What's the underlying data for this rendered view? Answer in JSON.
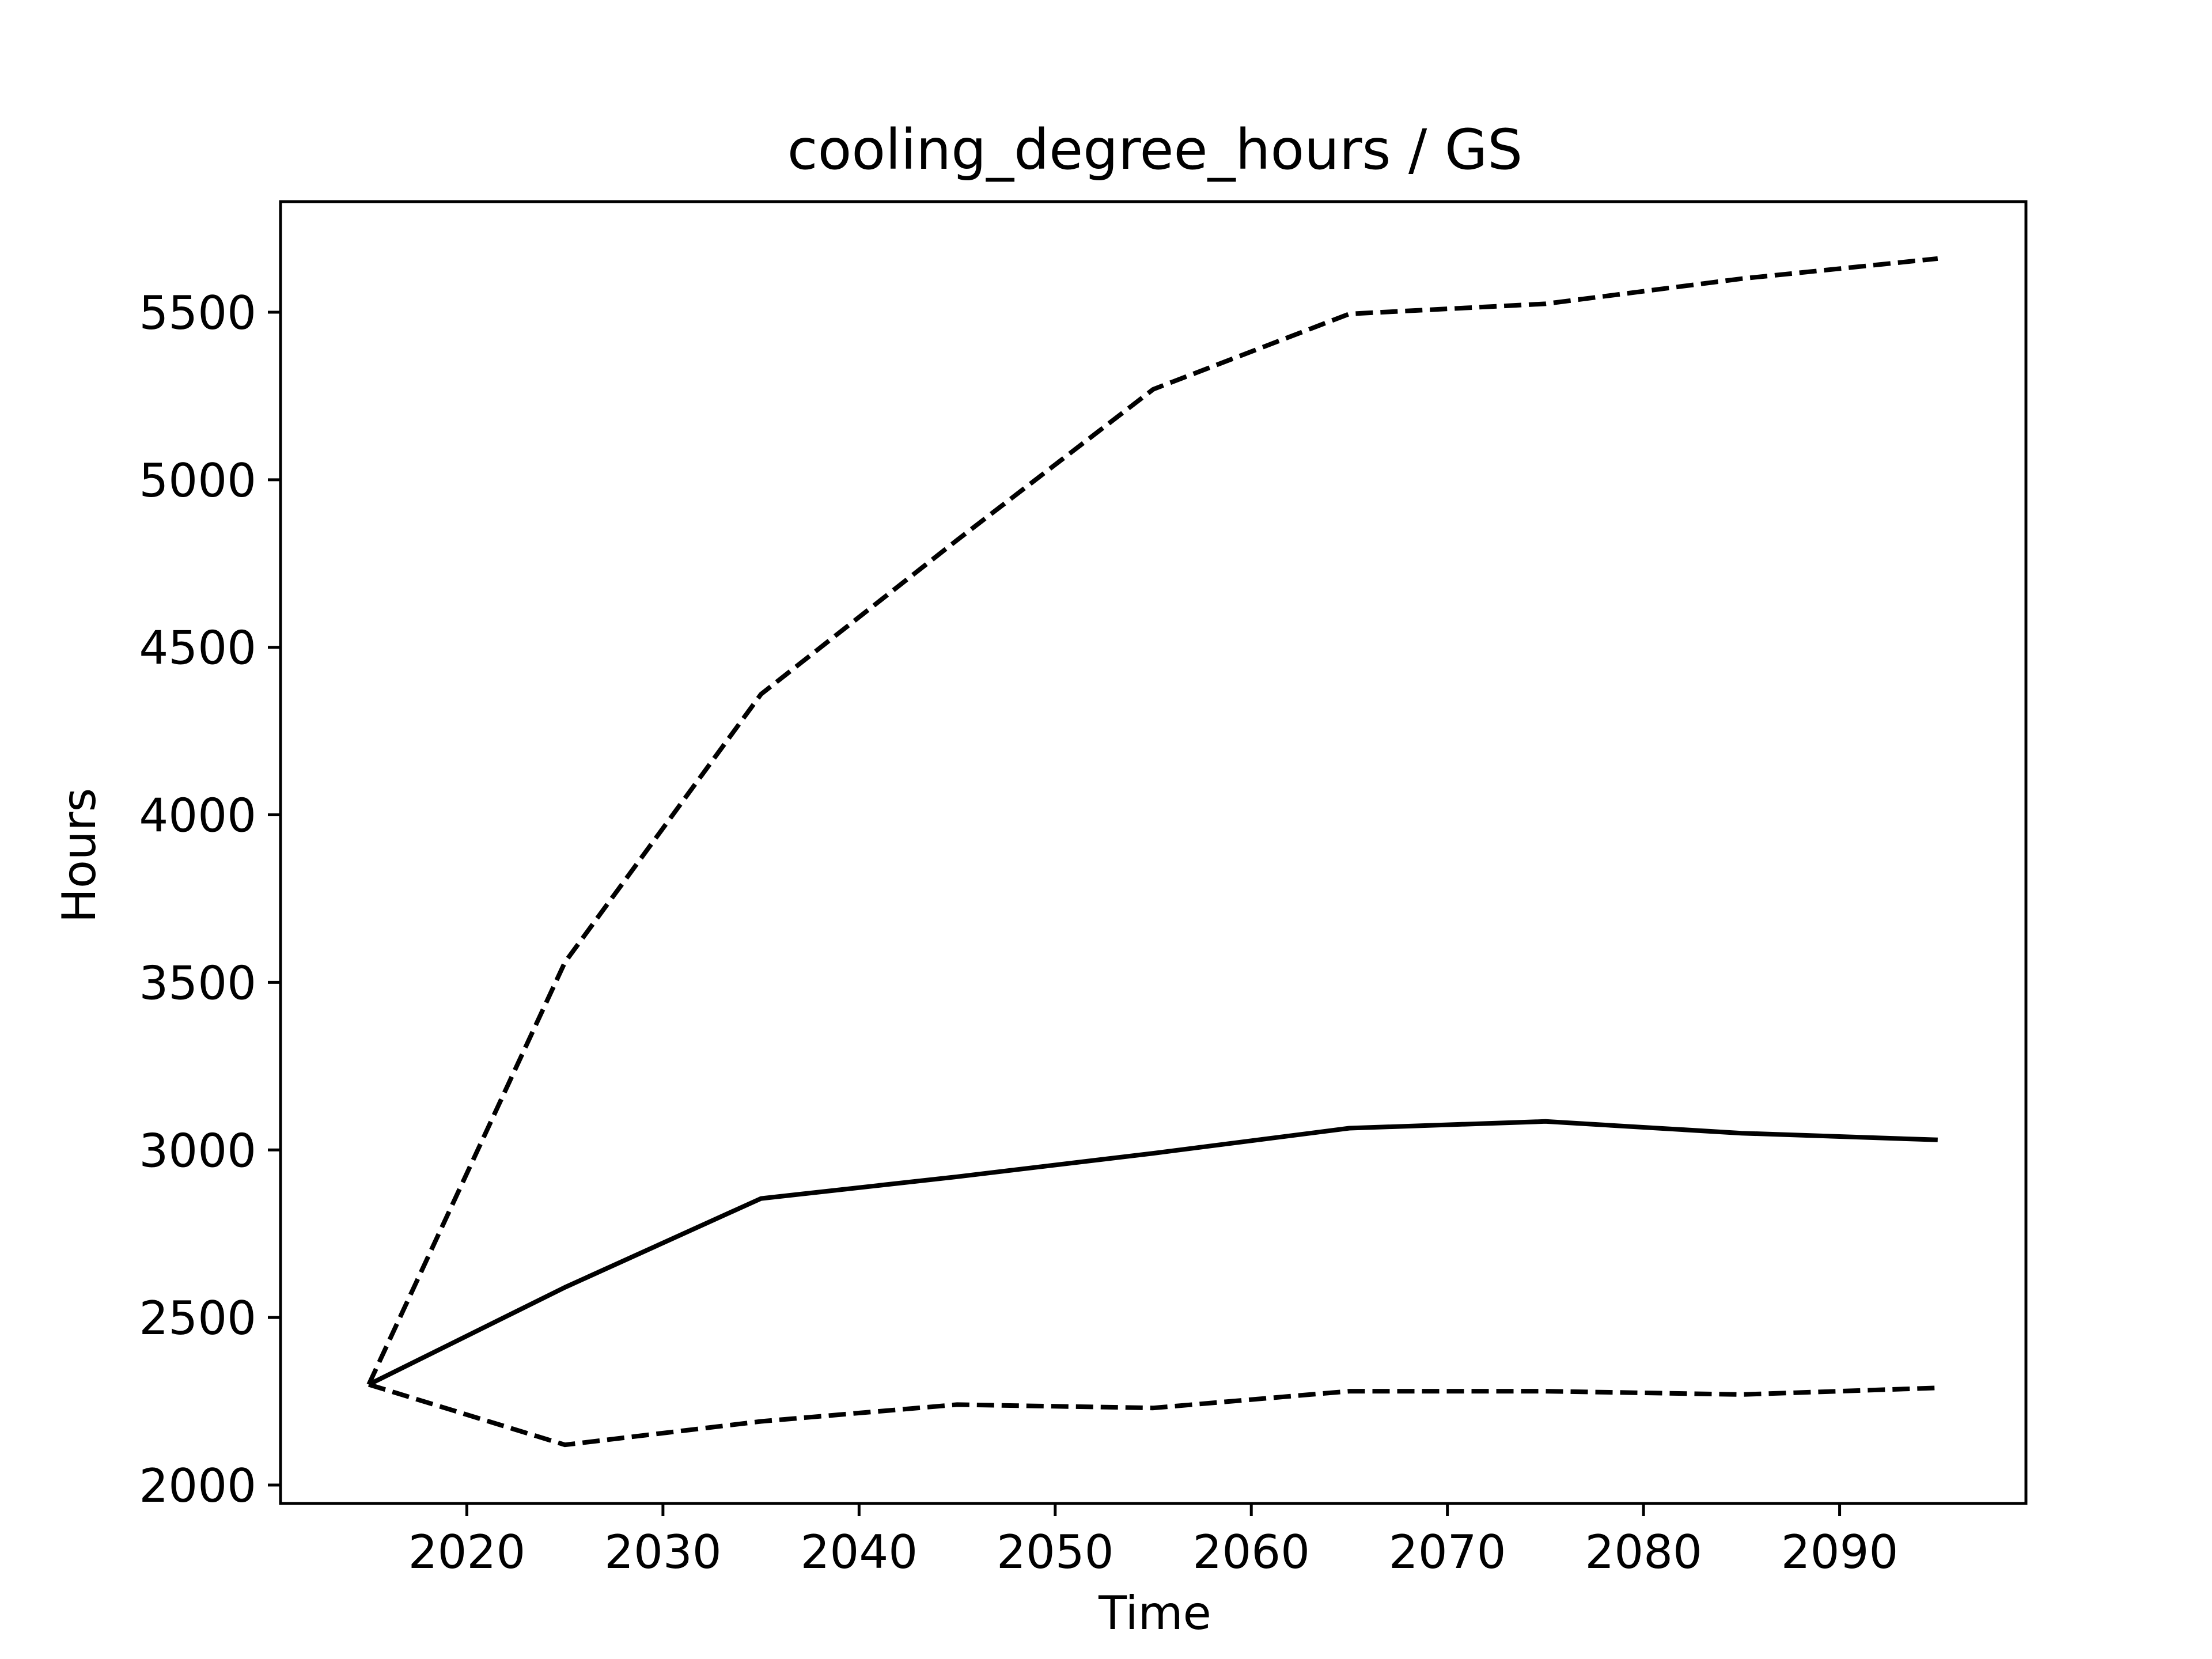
{
  "chart_data": {
    "type": "line",
    "title": "cooling_degree_hours / GS",
    "xlabel": "Time",
    "ylabel": "Hours",
    "xlim": [
      2010.5,
      2099.5
    ],
    "ylim": [
      1945,
      5830
    ],
    "xticks": [
      2020,
      2030,
      2040,
      2050,
      2060,
      2070,
      2080,
      2090
    ],
    "yticks": [
      2000,
      2500,
      3000,
      3500,
      4000,
      4500,
      5000,
      5500
    ],
    "grid": false,
    "x": [
      2015,
      2025,
      2035,
      2045,
      2055,
      2065,
      2075,
      2085,
      2095
    ],
    "series": [
      {
        "style": "solid",
        "color": "#000000",
        "values": [
          2300,
          2590,
          2855,
          2920,
          2990,
          3065,
          3085,
          3050,
          3030
        ]
      },
      {
        "style": "dashed",
        "color": "#000000",
        "values": [
          2300,
          3560,
          4360,
          4820,
          5270,
          5495,
          5525,
          5600,
          5660
        ]
      },
      {
        "style": "dashed",
        "color": "#000000",
        "values": [
          2300,
          2120,
          2190,
          2240,
          2230,
          2280,
          2280,
          2270,
          2290
        ]
      }
    ]
  }
}
